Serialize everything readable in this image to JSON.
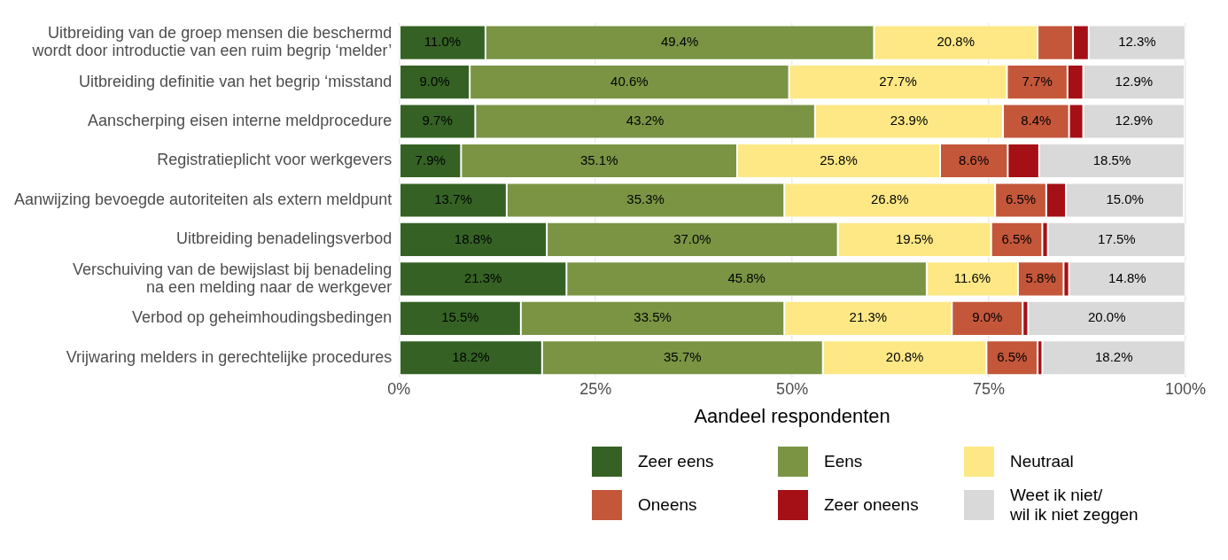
{
  "chart_data": {
    "type": "bar",
    "orientation": "horizontal",
    "stacked": true,
    "xlabel": "Aandeel respondenten",
    "legend": "bottom",
    "grid": "x",
    "xlim": [
      0,
      100
    ],
    "xticks": [
      {
        "value": 0,
        "label": "0%"
      },
      {
        "value": 25,
        "label": "25%"
      },
      {
        "value": 50,
        "label": "50%"
      },
      {
        "value": 75,
        "label": "75%"
      },
      {
        "value": 100,
        "label": "100%"
      }
    ],
    "categories": [
      "Uitbreiding van de groep mensen die beschermd\nwordt door introductie van een ruim begrip ‘melder’",
      "Uitbreiding definitie van het begrip ‘misstand",
      "Aanscherping eisen interne meldprocedure",
      "Registratieplicht voor werkgevers",
      "Aanwijzing bevoegde autoriteiten als extern meldpunt",
      "Uitbreiding benadelingsverbod",
      "Verschuiving van de bewijslast bij benadeling\nna een melding naar de werkgever",
      "Verbod op geheimhoudingsbedingen",
      "Vrijwaring melders in gerechtelijke procedures"
    ],
    "series": [
      {
        "name": "Zeer eens",
        "color": "#356224",
        "values": [
          11.0,
          9.0,
          9.7,
          7.9,
          13.7,
          18.8,
          21.3,
          15.5,
          18.2
        ],
        "value_labels": [
          "11.0%",
          "9.0%",
          "9.7%",
          "7.9%",
          "13.7%",
          "18.8%",
          "21.3%",
          "15.5%",
          "18.2%"
        ]
      },
      {
        "name": "Eens",
        "color": "#7a9444",
        "values": [
          49.4,
          40.6,
          43.2,
          35.1,
          35.3,
          37.0,
          45.8,
          33.5,
          35.7
        ],
        "value_labels": [
          "49.4%",
          "40.6%",
          "43.2%",
          "35.1%",
          "35.3%",
          "37.0%",
          "45.8%",
          "33.5%",
          "35.7%"
        ]
      },
      {
        "name": "Neutraal",
        "color": "#fde885",
        "values": [
          20.8,
          27.7,
          23.9,
          25.8,
          26.8,
          19.5,
          11.6,
          21.3,
          20.8
        ],
        "value_labels": [
          "20.8%",
          "27.7%",
          "23.9%",
          "25.8%",
          "26.8%",
          "19.5%",
          "11.6%",
          "21.3%",
          "20.8%"
        ]
      },
      {
        "name": "Oneens",
        "color": "#c4573a",
        "values": [
          4.5,
          7.7,
          8.4,
          8.6,
          6.5,
          6.5,
          5.8,
          9.0,
          6.5
        ],
        "value_labels": [
          null,
          "7.7%",
          "8.4%",
          "8.6%",
          "6.5%",
          "6.5%",
          "5.8%",
          "9.0%",
          "6.5%"
        ]
      },
      {
        "name": "Zeer oneens",
        "color": "#a51016",
        "values": [
          2.0,
          2.0,
          1.8,
          4.0,
          2.5,
          0.7,
          0.7,
          0.7,
          0.6
        ],
        "value_labels": [
          null,
          null,
          null,
          null,
          null,
          null,
          null,
          null,
          null
        ]
      },
      {
        "name": "Weet ik niet/\nwil ik niet zeggen",
        "color": "#d9d9d9",
        "values": [
          12.3,
          12.9,
          12.9,
          18.5,
          15.0,
          17.5,
          14.8,
          20.0,
          18.2
        ],
        "value_labels": [
          "12.3%",
          "12.9%",
          "12.9%",
          "18.5%",
          "15.0%",
          "17.5%",
          "14.8%",
          "20.0%",
          "18.2%"
        ]
      }
    ]
  }
}
